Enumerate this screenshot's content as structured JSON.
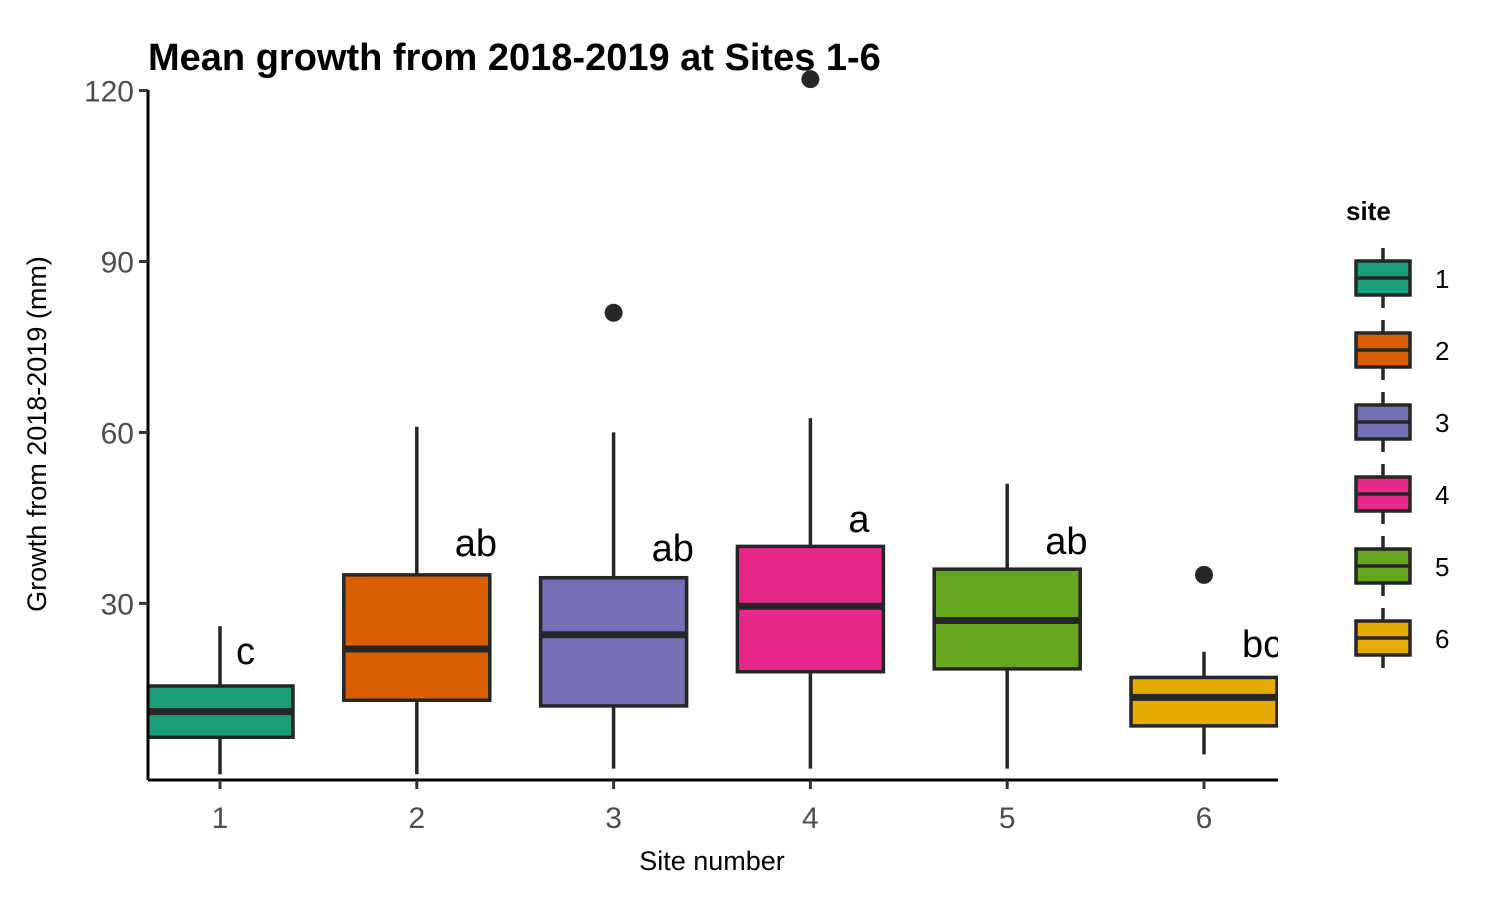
{
  "chart_data": {
    "type": "box",
    "title": "Mean growth from 2018-2019 at Sites 1-6",
    "xlabel": "Site number",
    "ylabel": "Growth from 2018-2019 (mm)",
    "ylim": [
      -1,
      121.5
    ],
    "yticks": [
      30,
      60,
      90,
      120
    ],
    "categories": [
      "1",
      "2",
      "3",
      "4",
      "5",
      "6"
    ],
    "boxes": [
      {
        "site": "1",
        "q1": 6.5,
        "median": 11,
        "q3": 15.5,
        "whisker_low": 0,
        "whisker_high": 26,
        "outliers": [],
        "letter": "c",
        "color": "#1b9e77"
      },
      {
        "site": "2",
        "q1": 13,
        "median": 22,
        "q3": 35,
        "whisker_low": 0,
        "whisker_high": 61,
        "outliers": [],
        "letter": "ab",
        "color": "#d95f02"
      },
      {
        "site": "3",
        "q1": 12,
        "median": 24.5,
        "q3": 34.5,
        "whisker_low": 1,
        "whisker_high": 60,
        "outliers": [
          81
        ],
        "letter": "ab",
        "color": "#7570b3"
      },
      {
        "site": "4",
        "q1": 18,
        "median": 29.5,
        "q3": 40,
        "whisker_low": 1,
        "whisker_high": 62.5,
        "outliers": [
          122
        ],
        "letter": "a",
        "color": "#e7298a"
      },
      {
        "site": "5",
        "q1": 18.5,
        "median": 27,
        "q3": 36,
        "whisker_low": 1,
        "whisker_high": 51,
        "outliers": [],
        "letter": "ab",
        "color": "#66a61e"
      },
      {
        "site": "6",
        "q1": 8.5,
        "median": 13.5,
        "q3": 17,
        "whisker_low": 3.5,
        "whisker_high": 21.5,
        "outliers": [
          35
        ],
        "letter": "bc",
        "color": "#e6ab02"
      }
    ],
    "legend": {
      "title": "site",
      "position": "right",
      "items": [
        {
          "label": "1",
          "color": "#1b9e77"
        },
        {
          "label": "2",
          "color": "#d95f02"
        },
        {
          "label": "3",
          "color": "#7570b3"
        },
        {
          "label": "4",
          "color": "#e7298a"
        },
        {
          "label": "5",
          "color": "#66a61e"
        },
        {
          "label": "6",
          "color": "#e6ab02"
        }
      ]
    },
    "grid": false
  }
}
